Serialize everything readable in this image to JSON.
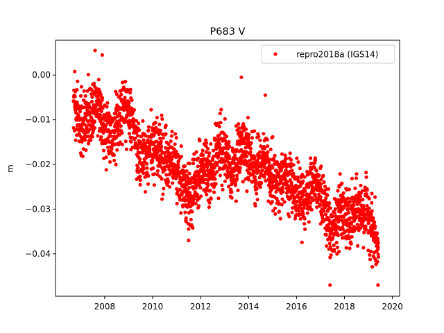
{
  "chart_data": {
    "type": "scatter",
    "title": "P683 V",
    "xlabel": "",
    "ylabel": "m",
    "xlim": [
      2005.95,
      2020.3
    ],
    "ylim": [
      -0.0495,
      0.0078
    ],
    "xticks": [
      2008,
      2010,
      2012,
      2014,
      2016,
      2018,
      2020
    ],
    "xtick_labels": [
      "2008",
      "2010",
      "2012",
      "2014",
      "2016",
      "2018",
      "2020"
    ],
    "yticks": [
      0.0,
      -0.01,
      -0.02,
      -0.03,
      -0.04
    ],
    "ytick_labels": [
      "0.00",
      "−0.01",
      "−0.02",
      "−0.03",
      "−0.04"
    ],
    "grid": false,
    "legend_position": "top-right",
    "marker_color": "#ff0000",
    "series": [
      {
        "name": "repro2018a (IGS14)",
        "color": "#ff0000",
        "x_start": 2006.7,
        "x_end": 2019.42,
        "trend": [
          [
            2006.7,
            -0.006
          ],
          [
            2007.0,
            -0.011
          ],
          [
            2007.4,
            -0.01
          ],
          [
            2007.7,
            -0.006
          ],
          [
            2008.0,
            -0.012
          ],
          [
            2008.3,
            -0.014
          ],
          [
            2008.8,
            -0.007
          ],
          [
            2009.1,
            -0.01
          ],
          [
            2009.4,
            -0.018
          ],
          [
            2009.8,
            -0.017
          ],
          [
            2010.2,
            -0.016
          ],
          [
            2010.6,
            -0.019
          ],
          [
            2011.0,
            -0.02
          ],
          [
            2011.3,
            -0.026
          ],
          [
            2011.6,
            -0.028
          ],
          [
            2012.0,
            -0.02
          ],
          [
            2012.4,
            -0.023
          ],
          [
            2012.8,
            -0.015
          ],
          [
            2013.3,
            -0.022
          ],
          [
            2013.8,
            -0.016
          ],
          [
            2014.2,
            -0.021
          ],
          [
            2014.7,
            -0.019
          ],
          [
            2015.1,
            -0.024
          ],
          [
            2015.5,
            -0.023
          ],
          [
            2016.0,
            -0.025
          ],
          [
            2016.4,
            -0.028
          ],
          [
            2016.8,
            -0.022
          ],
          [
            2017.2,
            -0.031
          ],
          [
            2017.5,
            -0.036
          ],
          [
            2017.8,
            -0.03
          ],
          [
            2018.2,
            -0.033
          ],
          [
            2018.6,
            -0.03
          ],
          [
            2019.0,
            -0.031
          ],
          [
            2019.42,
            -0.04
          ]
        ],
        "extremes": [
          [
            2007.6,
            0.0055
          ],
          [
            2007.9,
            0.0045
          ],
          [
            2013.7,
            -0.0005
          ],
          [
            2017.4,
            -0.047
          ],
          [
            2019.4,
            -0.047
          ],
          [
            2011.5,
            -0.037
          ],
          [
            2006.75,
            0.0008
          ],
          [
            2014.7,
            -0.0045
          ]
        ]
      }
    ]
  }
}
